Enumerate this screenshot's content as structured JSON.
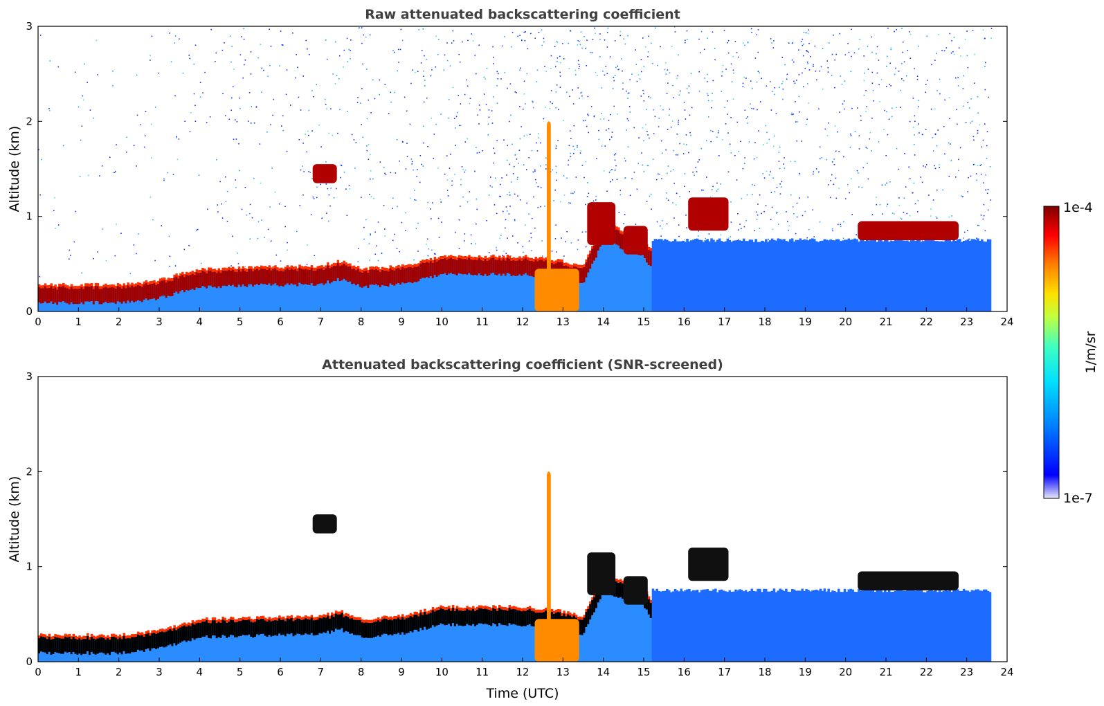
{
  "chart_data": [
    {
      "type": "heatmap",
      "title": "Raw attenuated backscattering coefficient",
      "xlabel": "",
      "ylabel": "Altitude (km)",
      "xlim": [
        0,
        24
      ],
      "ylim": [
        0,
        3
      ],
      "xticks": [
        "0",
        "1",
        "2",
        "3",
        "4",
        "5",
        "6",
        "7",
        "8",
        "9",
        "10",
        "11",
        "12",
        "13",
        "14",
        "15",
        "16",
        "17",
        "18",
        "19",
        "20",
        "21",
        "22",
        "23",
        "24"
      ],
      "yticks": [
        "0",
        "1",
        "2",
        "3"
      ],
      "data_end_time": 23.6,
      "boundary_layer_top": [
        [
          0,
          0.25
        ],
        [
          2,
          0.25
        ],
        [
          3,
          0.3
        ],
        [
          4,
          0.42
        ],
        [
          5,
          0.43
        ],
        [
          7,
          0.45
        ],
        [
          7.5,
          0.5
        ],
        [
          8,
          0.42
        ],
        [
          9,
          0.45
        ],
        [
          10,
          0.55
        ],
        [
          11,
          0.55
        ],
        [
          12,
          0.55
        ],
        [
          13,
          0.5
        ],
        [
          13.5,
          0.45
        ],
        [
          14,
          0.9
        ],
        [
          15,
          0.75
        ],
        [
          15.2,
          0.6
        ]
      ],
      "features": [
        {
          "t0": 6.8,
          "t1": 7.4,
          "z0": 1.35,
          "z1": 1.55,
          "level": "high"
        },
        {
          "t0": 13.6,
          "t1": 14.3,
          "z0": 0.7,
          "z1": 1.15,
          "level": "high"
        },
        {
          "t0": 14.5,
          "t1": 15.1,
          "z0": 0.6,
          "z1": 0.9,
          "level": "high"
        },
        {
          "t0": 16.1,
          "t1": 17.1,
          "z0": 0.85,
          "z1": 1.2,
          "level": "high"
        },
        {
          "t0": 20.3,
          "t1": 22.8,
          "z0": 0.75,
          "z1": 0.95,
          "level": "high"
        },
        {
          "t0": 12.3,
          "t1": 13.4,
          "z0": 0.0,
          "z1": 0.45,
          "level": "medium"
        },
        {
          "t0": 12.6,
          "t1": 12.7,
          "z0": 0.4,
          "z1": 2.0,
          "level": "medium"
        }
      ]
    },
    {
      "type": "heatmap",
      "title": "Attenuated backscattering coefficient (SNR-screened)",
      "xlabel": "Time (UTC)",
      "ylabel": "Altitude (km)",
      "xlim": [
        0,
        24
      ],
      "ylim": [
        0,
        3
      ],
      "xticks": [
        "0",
        "1",
        "2",
        "3",
        "4",
        "5",
        "6",
        "7",
        "8",
        "9",
        "10",
        "11",
        "12",
        "13",
        "14",
        "15",
        "16",
        "17",
        "18",
        "19",
        "20",
        "21",
        "22",
        "23",
        "24"
      ],
      "yticks": [
        "0",
        "1",
        "2",
        "3"
      ],
      "data_end_time": 23.6,
      "colorbar": {
        "label": "1/m/sr",
        "max_label": "1e-4",
        "min_label": "1e-7",
        "colormap": [
          "#e8e8f8",
          "#0000ff",
          "#0080ff",
          "#00e0ff",
          "#40ffc0",
          "#c0ff40",
          "#ffe000",
          "#ff8000",
          "#ff0000",
          "#800000"
        ]
      }
    }
  ]
}
